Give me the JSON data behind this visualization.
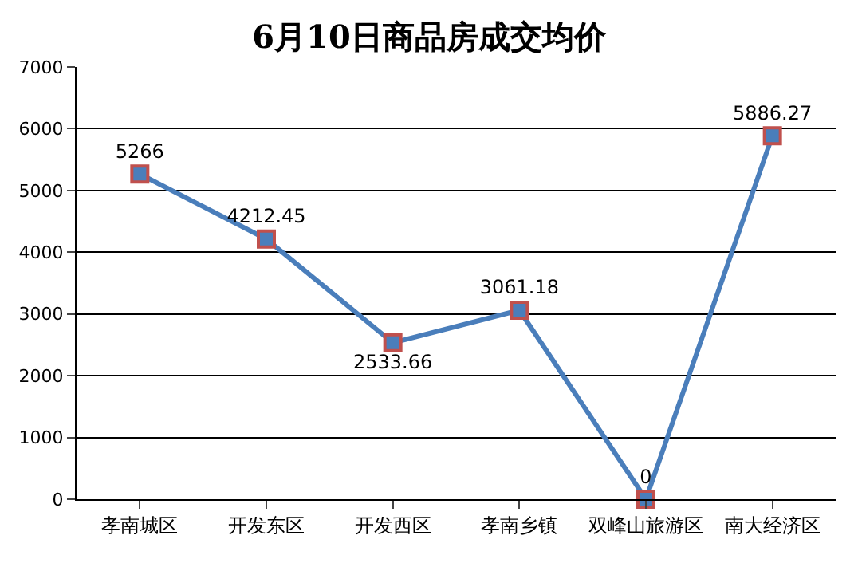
{
  "chart_data": {
    "type": "line",
    "title": "6月10日商品房成交均价",
    "categories": [
      "孝南城区",
      "开发东区",
      "开发西区",
      "孝南乡镇",
      "双峰山旅游区",
      "南大经济区"
    ],
    "series": [
      {
        "color": "#4a7ebb",
        "values": [
          5266,
          4212.45,
          2533.66,
          3061.18,
          0,
          5886.27
        ]
      }
    ],
    "ylim": [
      0,
      7000
    ],
    "yticks": [
      0,
      1000,
      2000,
      3000,
      4000,
      5000,
      6000,
      7000
    ],
    "grid": "y",
    "data_labels": true,
    "marker": "square",
    "line_style": "solid"
  }
}
